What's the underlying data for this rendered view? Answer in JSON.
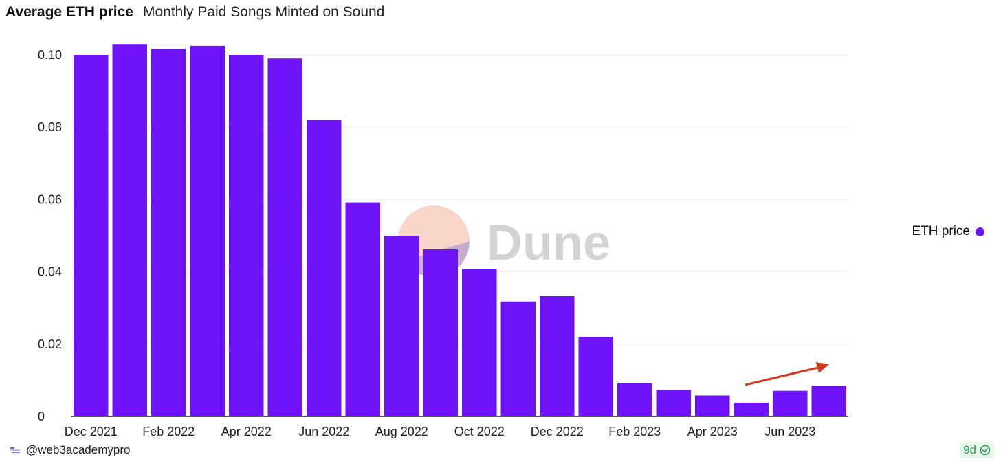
{
  "header": {
    "title": "Average ETH price",
    "subtitle": "Monthly Paid Songs Minted on Sound"
  },
  "legend": {
    "label": "ETH price",
    "color": "#6e12f7"
  },
  "watermark": {
    "text": "Dune"
  },
  "footer": {
    "username": "@web3academypro",
    "age_badge": "9d",
    "age_icon": "check-circle-icon"
  },
  "colors": {
    "bar": "#6e12f7",
    "gridline": "#ececf2",
    "axis": "#222222",
    "annotation_arrow": "#d0391e",
    "badge_text": "#2f9e57"
  },
  "chart_data": {
    "type": "bar",
    "categories": [
      "Dec 2021",
      "Jan 2022",
      "Feb 2022",
      "Mar 2022",
      "Apr 2022",
      "May 2022",
      "Jun 2022",
      "Jul 2022",
      "Aug 2022",
      "Sep 2022",
      "Oct 2022",
      "Nov 2022",
      "Dec 2022",
      "Jan 2023",
      "Feb 2023",
      "Mar 2023",
      "Apr 2023",
      "May 2023",
      "Jun 2023",
      "Jul 2023"
    ],
    "x_tick_labels": [
      "Dec 2021",
      "Feb 2022",
      "Apr 2022",
      "Jun 2022",
      "Aug 2022",
      "Oct 2022",
      "Dec 2022",
      "Feb 2023",
      "Apr 2023",
      "Jun 2023"
    ],
    "series": [
      {
        "name": "ETH price",
        "values": [
          0.1,
          0.103,
          0.1017,
          0.1025,
          0.1,
          0.099,
          0.082,
          0.0592,
          0.05,
          0.0462,
          0.0408,
          0.0318,
          0.0333,
          0.022,
          0.0092,
          0.0073,
          0.0058,
          0.0038,
          0.0071,
          0.0085
        ]
      }
    ],
    "ylim": [
      0,
      0.1
    ],
    "y_tick_labels": [
      "0",
      "0.02",
      "0.04",
      "0.06",
      "0.08",
      "0.10"
    ],
    "y_tick_values": [
      0,
      0.02,
      0.04,
      0.06,
      0.08,
      0.1
    ],
    "grid": true,
    "legend_position": "right",
    "annotation": "upward trend arrow over May 2023 – Jul 2023"
  }
}
